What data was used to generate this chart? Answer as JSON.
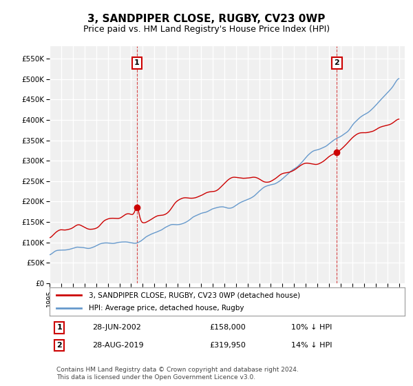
{
  "title": "3, SANDPIPER CLOSE, RUGBY, CV23 0WP",
  "subtitle": "Price paid vs. HM Land Registry's House Price Index (HPI)",
  "legend_entry1": "3, SANDPIPER CLOSE, RUGBY, CV23 0WP (detached house)",
  "legend_entry2": "HPI: Average price, detached house, Rugby",
  "annotation1_label": "1",
  "annotation1_date": "28-JUN-2002",
  "annotation1_price": "£158,000",
  "annotation1_hpi": "10% ↓ HPI",
  "annotation2_label": "2",
  "annotation2_date": "28-AUG-2019",
  "annotation2_price": "£319,950",
  "annotation2_hpi": "14% ↓ HPI",
  "footer": "Contains HM Land Registry data © Crown copyright and database right 2024.\nThis data is licensed under the Open Government Licence v3.0.",
  "bg_color": "#ffffff",
  "plot_bg_color": "#f0f0f0",
  "grid_color": "#ffffff",
  "hpi_line_color": "#6699cc",
  "price_line_color": "#cc0000",
  "annotation_color": "#cc0000",
  "ylim_min": 0,
  "ylim_max": 580000,
  "yticks": [
    0,
    50000,
    100000,
    150000,
    200000,
    250000,
    300000,
    350000,
    400000,
    450000,
    500000,
    550000
  ],
  "x_start_year": 1995,
  "x_end_year": 2025
}
